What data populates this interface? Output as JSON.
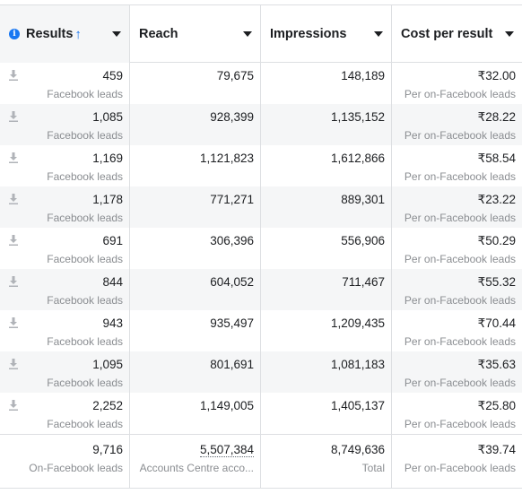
{
  "columns": [
    {
      "label": "Results"
    },
    {
      "label": "Reach"
    },
    {
      "label": "Impressions"
    },
    {
      "label": "Cost per result"
    }
  ],
  "rows": [
    {
      "results": "459",
      "results_sub": "Facebook leads",
      "reach": "79,675",
      "impressions": "148,189",
      "cost": "₹32.00",
      "cost_sub": "Per on-Facebook leads"
    },
    {
      "results": "1,085",
      "results_sub": "Facebook leads",
      "reach": "928,399",
      "impressions": "1,135,152",
      "cost": "₹28.22",
      "cost_sub": "Per on-Facebook leads"
    },
    {
      "results": "1,169",
      "results_sub": "Facebook leads",
      "reach": "1,121,823",
      "impressions": "1,612,866",
      "cost": "₹58.54",
      "cost_sub": "Per on-Facebook leads"
    },
    {
      "results": "1,178",
      "results_sub": "Facebook leads",
      "reach": "771,271",
      "impressions": "889,301",
      "cost": "₹23.22",
      "cost_sub": "Per on-Facebook leads"
    },
    {
      "results": "691",
      "results_sub": "Facebook leads",
      "reach": "306,396",
      "impressions": "556,906",
      "cost": "₹50.29",
      "cost_sub": "Per on-Facebook leads"
    },
    {
      "results": "844",
      "results_sub": "Facebook leads",
      "reach": "604,052",
      "impressions": "711,467",
      "cost": "₹55.32",
      "cost_sub": "Per on-Facebook leads"
    },
    {
      "results": "943",
      "results_sub": "Facebook leads",
      "reach": "935,497",
      "impressions": "1,209,435",
      "cost": "₹70.44",
      "cost_sub": "Per on-Facebook leads"
    },
    {
      "results": "1,095",
      "results_sub": "Facebook leads",
      "reach": "801,691",
      "impressions": "1,081,183",
      "cost": "₹35.63",
      "cost_sub": "Per on-Facebook leads"
    },
    {
      "results": "2,252",
      "results_sub": "Facebook leads",
      "reach": "1,149,005",
      "impressions": "1,405,137",
      "cost": "₹25.80",
      "cost_sub": "Per on-Facebook leads"
    }
  ],
  "totals": {
    "results": "9,716",
    "results_sub": "On-Facebook leads",
    "reach": "5,507,384",
    "reach_sub": "Accounts Centre acco...",
    "impressions": "8,749,636",
    "impressions_sub": "Total",
    "cost": "₹39.74",
    "cost_sub": "Per on-Facebook leads"
  },
  "icons": {
    "info": "info-icon",
    "sort": "sort-ascending-icon",
    "row": "download-icon"
  },
  "colors": {
    "accent": "#1877f2",
    "row_alt": "#f5f6f7",
    "border": "#dddfe2",
    "muted_text": "#8a8d91"
  }
}
